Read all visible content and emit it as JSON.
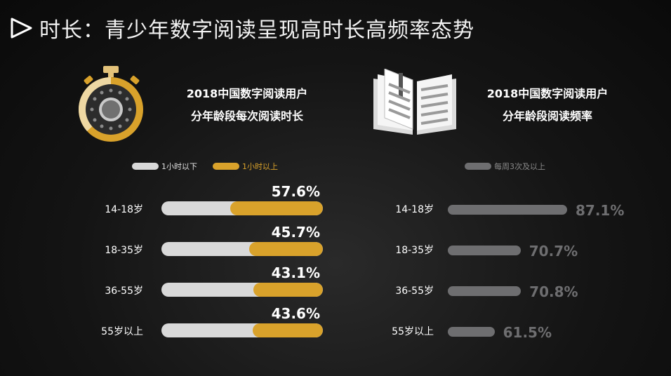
{
  "header": {
    "title": "时长：青少年数字阅读呈现高时长高频率态势"
  },
  "left_panel": {
    "subtitle_line1": "2018中国数字阅读用户",
    "subtitle_line2": "分年龄段每次阅读时长",
    "legend": [
      {
        "label": "1小时以下",
        "color": "#d9d9d9"
      },
      {
        "label": "1小时以上",
        "color": "#d9a22b"
      }
    ]
  },
  "right_panel": {
    "subtitle_line1": "2018中国数字阅读用户",
    "subtitle_line2": "分年龄段阅读频率",
    "legend": [
      {
        "label": "每周3次及以上",
        "color": "#6e6e70"
      }
    ]
  },
  "chart_data": [
    {
      "type": "bar",
      "title": "2018中国数字阅读用户 分年龄段每次阅读时长",
      "categories": [
        "14-18岁",
        "18-35岁",
        "36-55岁",
        "55岁以上"
      ],
      "series": [
        {
          "name": "1小时以上",
          "values": [
            57.6,
            45.7,
            43.1,
            43.6
          ],
          "labels": [
            "57.6%",
            "45.7%",
            "43.1%",
            "43.6%"
          ],
          "color": "#d9a22b"
        },
        {
          "name": "1小时以下",
          "values": [
            42.4,
            54.3,
            56.9,
            56.4
          ],
          "color": "#d9d9d9"
        }
      ],
      "ylim": [
        0,
        100
      ]
    },
    {
      "type": "bar",
      "title": "2018中国数字阅读用户 分年龄段阅读频率",
      "categories": [
        "14-18岁",
        "18-35岁",
        "36-55岁",
        "55岁以上"
      ],
      "series": [
        {
          "name": "每周3次及以上",
          "values": [
            87.1,
            70.7,
            70.8,
            61.5
          ],
          "labels": [
            "87.1%",
            "70.7%",
            "70.8%",
            "61.5%"
          ],
          "color": "#6e6e70"
        }
      ],
      "ylim": [
        0,
        100
      ]
    }
  ]
}
